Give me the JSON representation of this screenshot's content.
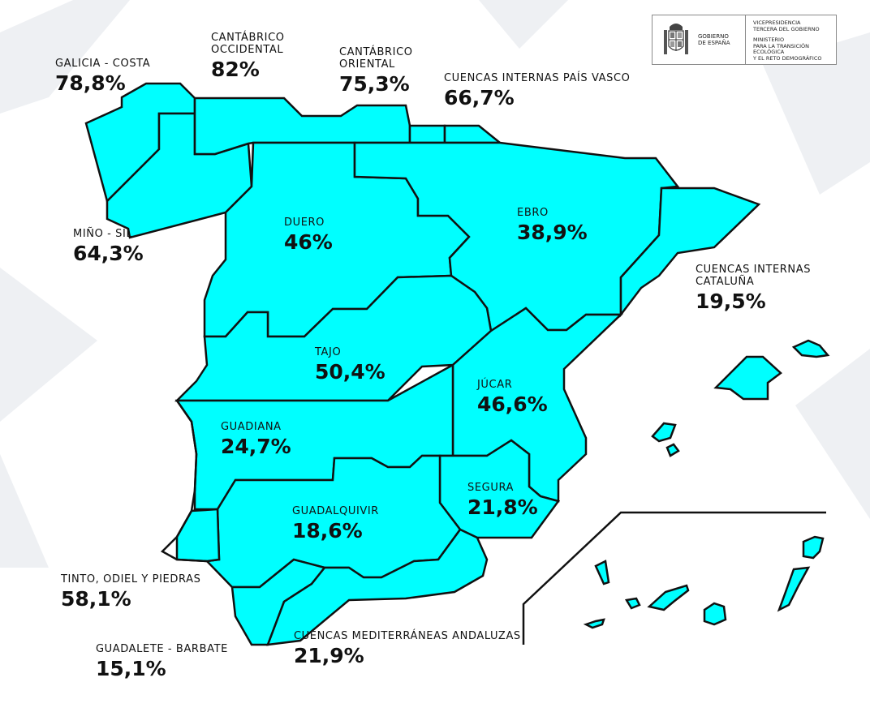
{
  "colors": {
    "region_fill": "#00ffff",
    "region_stroke": "#111111",
    "background": "#ffffff",
    "background_shapes": "#eef0f3"
  },
  "logo": {
    "government": "GOBIERNO\nDE ESPAÑA",
    "vicepresidency": "VICEPRESIDENCIA\nTERCERA DEL GOBIERNO",
    "ministry": "MINISTERIO\nPARA LA TRANSICIÓN ECOLÓGICA\nY EL RETO DEMOGRÁFICO"
  },
  "basins": [
    {
      "id": "galicia-costa",
      "name": "GALICIA - COSTA",
      "value": "78,8%"
    },
    {
      "id": "cantabrico-occidental",
      "name": "CANTÁBRICO\nOCCIDENTAL",
      "value": "82%"
    },
    {
      "id": "cantabrico-oriental",
      "name": "CANTÁBRICO\nORIENTAL",
      "value": "75,3%"
    },
    {
      "id": "cuencas-internas-pais-vasco",
      "name": "CUENCAS INTERNAS PAÍS VASCO",
      "value": "66,7%"
    },
    {
      "id": "mino-sil",
      "name": "MIÑO - SIL",
      "value": "64,3%"
    },
    {
      "id": "duero",
      "name": "DUERO",
      "value": "46%"
    },
    {
      "id": "ebro",
      "name": "EBRO",
      "value": "38,9%"
    },
    {
      "id": "cuencas-internas-cataluna",
      "name": "CUENCAS INTERNAS\nCATALUÑA",
      "value": "19,5%"
    },
    {
      "id": "tajo",
      "name": "TAJO",
      "value": "50,4%"
    },
    {
      "id": "jucar",
      "name": "JÚCAR",
      "value": "46,6%"
    },
    {
      "id": "guadiana",
      "name": "GUADIANA",
      "value": "24,7%"
    },
    {
      "id": "segura",
      "name": "SEGURA",
      "value": "21,8%"
    },
    {
      "id": "guadalquivir",
      "name": "GUADALQUIVIR",
      "value": "18,6%"
    },
    {
      "id": "tinto-odiel-piedras",
      "name": "TINTO, ODIEL Y PIEDRAS",
      "value": "58,1%"
    },
    {
      "id": "guadalete-barbate",
      "name": "GUADALETE - BARBATE",
      "value": "15,1%"
    },
    {
      "id": "cuencas-mediterraneas-andaluzas",
      "name": "CUENCAS MEDITERRÁNEAS ANDALUZAS",
      "value": "21,9%"
    }
  ]
}
